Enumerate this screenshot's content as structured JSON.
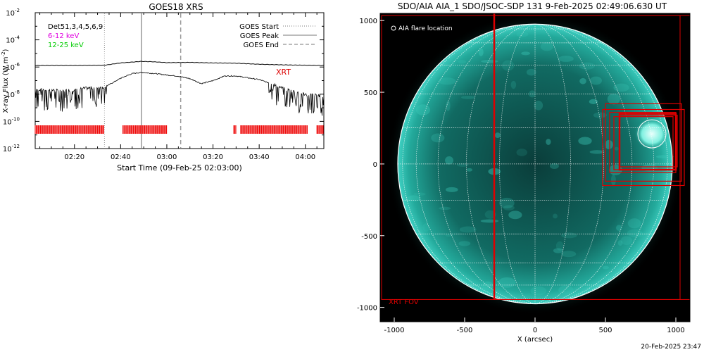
{
  "footer": {
    "timestamp": "20-Feb-2025 23:47"
  },
  "chart_data": [
    {
      "type": "line",
      "title": "GOES18 XRS",
      "xlabel": "Start Time (09-Feb-25 02:03:00)",
      "ylabel": "X-ray Flux (W m^-2)",
      "ylabel_main": "X-ray Flux (W m",
      "ylabel_sup": "-2",
      "ylabel_end": ")",
      "y_scale": "log",
      "ylim": [
        1e-12,
        0.01
      ],
      "xlim": [
        "02:03",
        "04:08"
      ],
      "x_tick_labels": [
        "02:20",
        "02:40",
        "03:00",
        "03:20",
        "03:40",
        "04:00"
      ],
      "y_tick_labels": [
        {
          "base": "10",
          "exp": "-2",
          "value": 0.01
        },
        {
          "base": "10",
          "exp": "-4",
          "value": 0.0001
        },
        {
          "base": "10",
          "exp": "-6",
          "value": 1e-06
        },
        {
          "base": "10",
          "exp": "-8",
          "value": 1e-08
        },
        {
          "base": "10",
          "exp": "-10",
          "value": 1e-10
        },
        {
          "base": "10",
          "exp": "-12",
          "value": 1e-12
        }
      ],
      "legend_left": [
        {
          "label": "Det51,3,4,5,6,9",
          "color": "#000000"
        },
        {
          "label": "6-12 keV",
          "color": "#e000e0"
        },
        {
          "label": "12-25 keV",
          "color": "#00cc00"
        }
      ],
      "legend_right": [
        {
          "label": "GOES Start",
          "style": "dotted"
        },
        {
          "label": "GOES Peak",
          "style": "solid"
        },
        {
          "label": "GOES End",
          "style": "dashed"
        }
      ],
      "markers": {
        "goes_start": "02:33",
        "goes_peak": "02:49",
        "goes_end": "03:06"
      },
      "annotation": {
        "label": "XRT",
        "color": "#dd0000"
      },
      "series": [
        {
          "points": [
            [
              "02:03",
              1.3e-06
            ],
            [
              "02:20",
              1.3e-06
            ],
            [
              "02:33",
              1.35e-06
            ],
            [
              "02:40",
              2e-06
            ],
            [
              "02:49",
              2.6e-06
            ],
            [
              "02:55",
              2.4e-06
            ],
            [
              "03:00",
              2.1e-06
            ],
            [
              "03:10",
              2.2e-06
            ],
            [
              "03:20",
              2e-06
            ],
            [
              "03:30",
              1.9e-06
            ],
            [
              "03:40",
              1.6e-06
            ],
            [
              "03:50",
              1.45e-06
            ],
            [
              "04:00",
              1.35e-06
            ],
            [
              "04:08",
              1.3e-06
            ]
          ]
        },
        {
          "noise_until": "02:34",
          "noise_from": "03:44",
          "points": [
            [
              "02:03",
              2.2e-08
            ],
            [
              "02:15",
              1.6e-08
            ],
            [
              "02:25",
              2.5e-08
            ],
            [
              "02:33",
              3.2e-08
            ],
            [
              "02:40",
              1.5e-07
            ],
            [
              "02:45",
              3.3e-07
            ],
            [
              "02:49",
              4e-07
            ],
            [
              "02:55",
              3.3e-07
            ],
            [
              "03:00",
              2.6e-07
            ],
            [
              "03:05",
              2.1e-07
            ],
            [
              "03:10",
              1.4e-07
            ],
            [
              "03:15",
              6e-08
            ],
            [
              "03:20",
              1e-07
            ],
            [
              "03:25",
              2.2e-07
            ],
            [
              "03:30",
              2.2e-07
            ],
            [
              "03:35",
              1.6e-07
            ],
            [
              "03:40",
              1.2e-07
            ],
            [
              "03:45",
              6e-08
            ],
            [
              "03:50",
              2.5e-08
            ],
            [
              "04:00",
              9e-09
            ],
            [
              "04:08",
              7e-09
            ]
          ]
        }
      ],
      "xrt_coverage_value": 2.5e-11,
      "xrt_coverage": [
        [
          "02:03",
          "02:33"
        ],
        [
          "02:41",
          "03:00"
        ],
        [
          "03:29",
          "03:30"
        ],
        [
          "03:32",
          "04:01"
        ],
        [
          "04:05",
          "04:08"
        ]
      ]
    },
    {
      "type": "image",
      "title": "SDO/AIA AIA_1 SDO/JSOC-SDP 131  9-Feb-2025 02:49:06.630 UT",
      "xlabel": "X (arcsec)",
      "xlim": [
        -1100,
        1100
      ],
      "ylim": [
        -1100,
        1050
      ],
      "x_tick_labels": [
        "-1000",
        "-500",
        "0",
        "500",
        "1000"
      ],
      "y_tick_labels": [
        "1000",
        "500",
        "0",
        "-500",
        "-1000"
      ],
      "solar_radius_arcsec": 975,
      "legend": {
        "label": "AIA flare location"
      },
      "fov_label": "XRT FOV",
      "flare_location": {
        "x": 830,
        "y": 210
      },
      "colors": {
        "fov": "#dd0000",
        "disk": "#1fa89a",
        "background": "#000000"
      }
    }
  ]
}
